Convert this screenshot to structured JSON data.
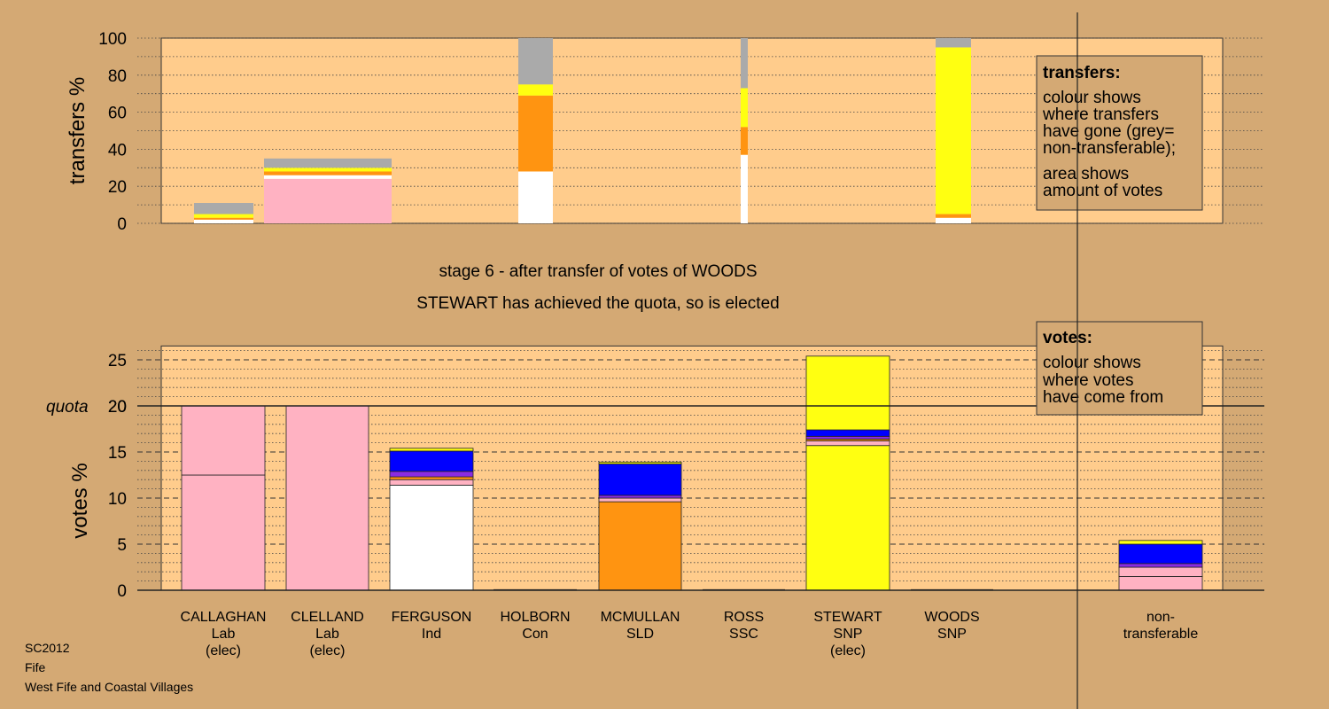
{
  "colors": {
    "background": "#d4a974",
    "panel": "#ffcc8c",
    "Lab": "#ffb2c2",
    "Ind": "#ffffff",
    "Con": "#8a2be2",
    "SLD": "#ff9411",
    "SSC": "#ff3b00",
    "SNP": "#ffff11",
    "transfer_blue": "#0000ff",
    "non_transferable": "#aaaaaa"
  },
  "chart_data": [
    {
      "type": "bar",
      "name": "transfers",
      "ylabel": "transfers %",
      "ylim": [
        0,
        100
      ],
      "yticks": [
        0,
        20,
        40,
        60,
        80,
        100
      ],
      "grid": "dotted",
      "legend": {
        "title": "transfers:",
        "lines": [
          "colour shows",
          "where transfers",
          "have gone (grey=",
          "non-transferable);",
          "area shows",
          "amount of votes"
        ]
      },
      "bars": [
        {
          "stage": 1,
          "segments": [
            {
              "to": "Ind",
              "value": 2
            },
            {
              "to": "SLD",
              "value": 1
            },
            {
              "to": "SNP",
              "value": 2
            },
            {
              "to": "non-transferable",
              "value": 6
            }
          ]
        },
        {
          "stage": 2,
          "segments": [
            {
              "to": "Lab",
              "value": 24
            },
            {
              "to": "Ind",
              "value": 2
            },
            {
              "to": "SLD",
              "value": 2
            },
            {
              "to": "SNP",
              "value": 2
            },
            {
              "to": "non-transferable",
              "value": 5
            }
          ]
        },
        {
          "stage": 3,
          "segments": [
            {
              "to": "Ind",
              "value": 28
            },
            {
              "to": "SLD",
              "value": 41
            },
            {
              "to": "SNP",
              "value": 6
            },
            {
              "to": "non-transferable",
              "value": 25
            }
          ]
        },
        {
          "stage": 4,
          "segments": [
            {
              "to": "Ind",
              "value": 37
            },
            {
              "to": "SLD",
              "value": 15
            },
            {
              "to": "SNP",
              "value": 21
            },
            {
              "to": "non-transferable",
              "value": 27
            }
          ]
        },
        {
          "stage": 5,
          "segments": [
            {
              "to": "Ind",
              "value": 3
            },
            {
              "to": "SLD",
              "value": 2
            },
            {
              "to": "SNP",
              "value": 90
            },
            {
              "to": "non-transferable",
              "value": 5
            }
          ]
        }
      ]
    },
    {
      "type": "bar",
      "name": "votes",
      "ylabel": "votes %",
      "ylim": [
        0,
        26.5
      ],
      "yticks": [
        0,
        5,
        10,
        15,
        20,
        25
      ],
      "quota": 20,
      "quota_label": "quota",
      "grid": "dashed",
      "legend": {
        "title": "votes:",
        "lines": [
          "colour shows",
          "where votes",
          "have come from"
        ]
      },
      "categories": [
        {
          "name": "CALLAGHAN",
          "party": "Lab",
          "status": "(elec)",
          "segments": [
            {
              "from": "Lab",
              "value": 12.5
            },
            {
              "from": "Lab",
              "value": 7.5
            }
          ]
        },
        {
          "name": "CLELLAND",
          "party": "Lab",
          "status": "(elec)",
          "segments": [
            {
              "from": "Lab",
              "value": 20
            }
          ]
        },
        {
          "name": "FERGUSON",
          "party": "Ind",
          "status": "",
          "segments": [
            {
              "from": "Ind",
              "value": 11.4
            },
            {
              "from": "Lab",
              "value": 0.6
            },
            {
              "from": "SLD",
              "value": 0.3
            },
            {
              "from": "Con",
              "value": 0.6
            },
            {
              "from": "transfer_blue",
              "value": 2.2
            },
            {
              "from": "SNP",
              "value": 0.3
            }
          ]
        },
        {
          "name": "HOLBORN",
          "party": "Con",
          "status": "",
          "segments": []
        },
        {
          "name": "MCMULLAN",
          "party": "SLD",
          "status": "",
          "segments": [
            {
              "from": "SLD",
              "value": 9.6
            },
            {
              "from": "Lab",
              "value": 0.4
            },
            {
              "from": "Con",
              "value": 0.3
            },
            {
              "from": "transfer_blue",
              "value": 3.4
            },
            {
              "from": "SNP",
              "value": 0.2
            }
          ]
        },
        {
          "name": "ROSS",
          "party": "SSC",
          "status": "",
          "segments": []
        },
        {
          "name": "STEWART",
          "party": "SNP",
          "status": "(elec)",
          "segments": [
            {
              "from": "SNP",
              "value": 15.7
            },
            {
              "from": "Lab",
              "value": 0.5
            },
            {
              "from": "SLD",
              "value": 0.2
            },
            {
              "from": "Con",
              "value": 0.3
            },
            {
              "from": "transfer_blue",
              "value": 0.7
            },
            {
              "from": "SNP",
              "value": 8.0
            }
          ]
        },
        {
          "name": "WOODS",
          "party": "SNP",
          "status": "",
          "segments": []
        },
        {
          "name": "non-\ntransferable",
          "party": "",
          "status": "",
          "segments": [
            {
              "from": "Lab",
              "value": 1.5
            },
            {
              "from": "Lab",
              "value": 1.0
            },
            {
              "from": "Con",
              "value": 0.4
            },
            {
              "from": "transfer_blue",
              "value": 2.1
            },
            {
              "from": "SNP",
              "value": 0.4
            }
          ]
        }
      ]
    }
  ],
  "stage_title": "stage 6 - after transfer of votes of WOODS",
  "stage_subtitle": "STEWART has achieved the quota, so is elected",
  "footer": {
    "election": "SC2012",
    "council": "Fife",
    "ward": "West Fife and Coastal Villages"
  }
}
